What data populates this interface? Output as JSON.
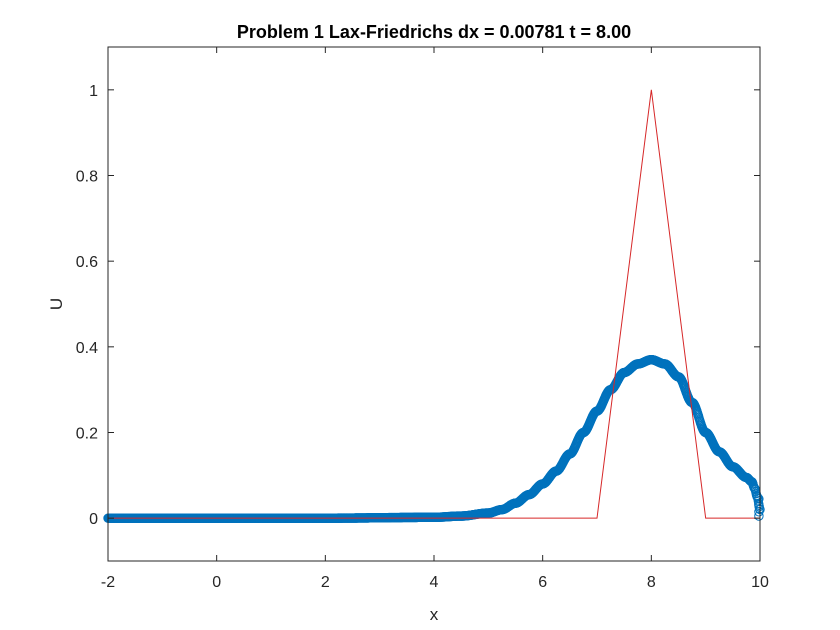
{
  "chart_data": {
    "type": "line",
    "title": "Problem 1 Lax-Friedrichs  dx = 0.00781 t = 8.00",
    "xlabel": "x",
    "ylabel": "U",
    "xlim": [
      -2,
      10
    ],
    "ylim": [
      -0.1,
      1.1
    ],
    "xticks": [
      -2,
      0,
      2,
      4,
      6,
      8,
      10
    ],
    "yticks": [
      0,
      0.2,
      0.4,
      0.6,
      0.8,
      1
    ],
    "xtick_labels": [
      "-2",
      "0",
      "2",
      "4",
      "6",
      "8",
      "10"
    ],
    "ytick_labels": [
      "0",
      "0.2",
      "0.4",
      "0.6",
      "0.8",
      "1"
    ],
    "grid": false,
    "series": [
      {
        "kind": "exact",
        "style": "line",
        "color": "#d62728",
        "x": [
          -2,
          7,
          8,
          9,
          10
        ],
        "y": [
          0,
          0,
          1,
          0,
          0
        ]
      },
      {
        "kind": "numerical",
        "style": "circle-markers",
        "color": "#0072bd",
        "x": [
          -2,
          0,
          2,
          4,
          4.5,
          5.0,
          5.25,
          5.5,
          5.75,
          6.0,
          6.25,
          6.5,
          6.75,
          7.0,
          7.25,
          7.5,
          7.75,
          8.0,
          8.25,
          8.5,
          8.75,
          9.0,
          9.25,
          9.5,
          9.75,
          9.85,
          9.9,
          9.95,
          10
        ],
        "y": [
          0,
          0,
          0,
          0.002,
          0.005,
          0.012,
          0.02,
          0.035,
          0.055,
          0.08,
          0.11,
          0.15,
          0.2,
          0.25,
          0.3,
          0.34,
          0.36,
          0.37,
          0.36,
          0.33,
          0.27,
          0.2,
          0.155,
          0.12,
          0.095,
          0.085,
          0.07,
          0.05,
          0.02
        ]
      }
    ]
  }
}
